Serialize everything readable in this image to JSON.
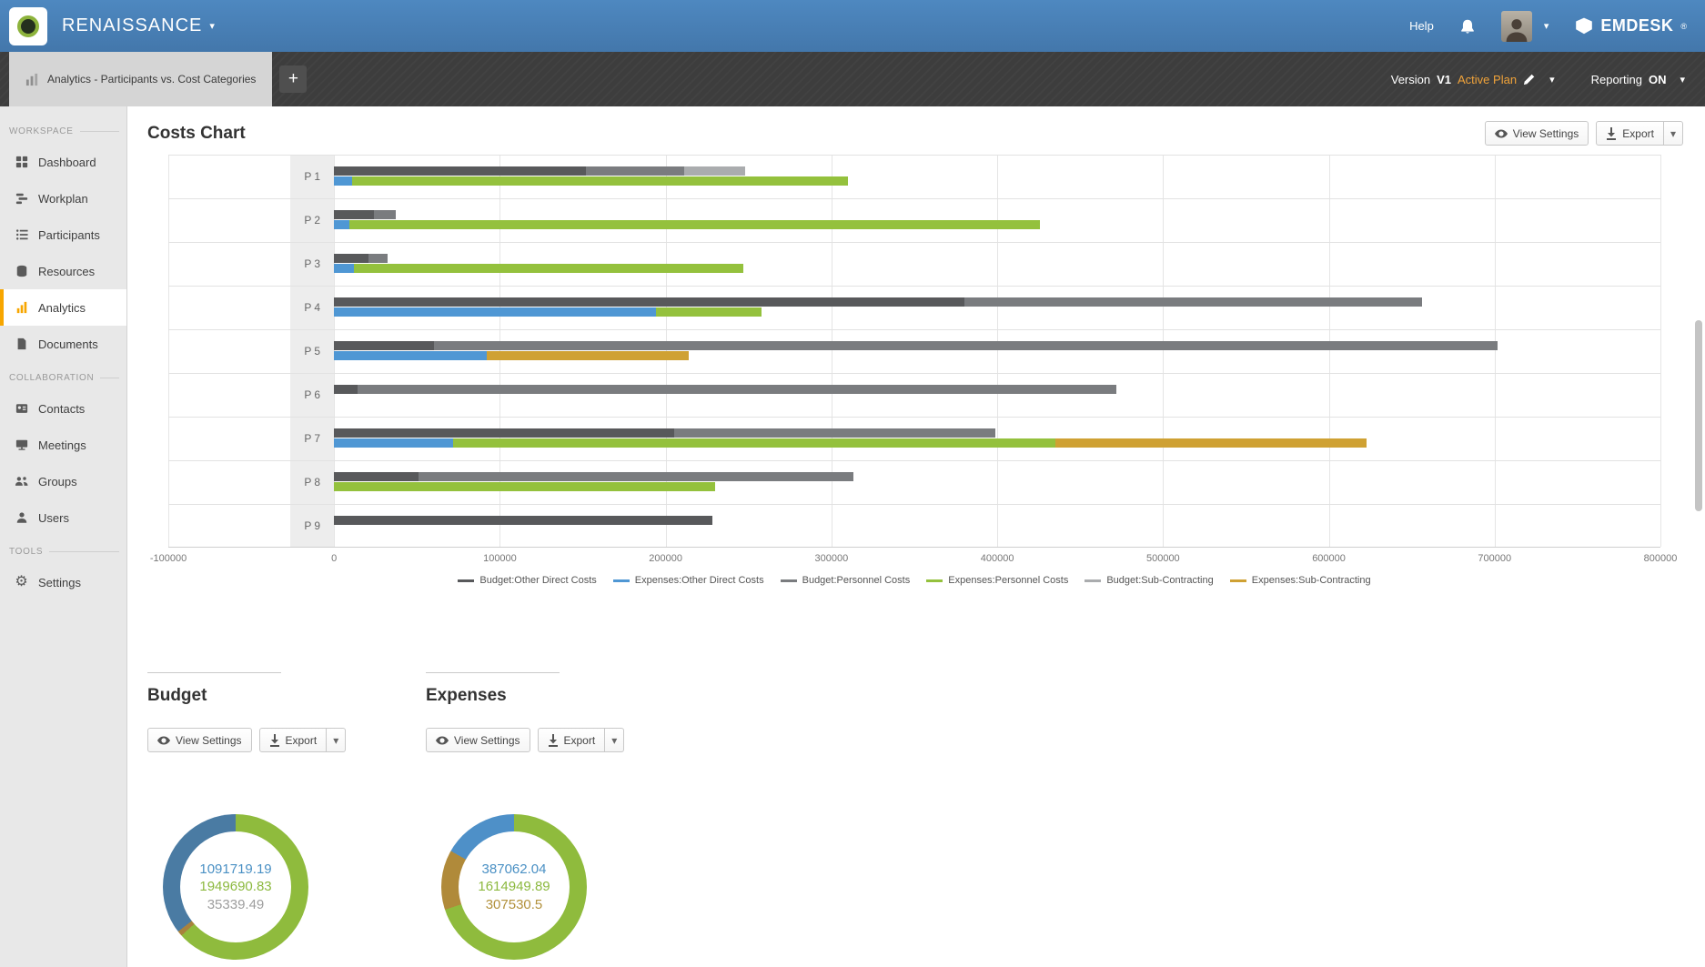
{
  "navbar": {
    "brand": "RENAISSANCE",
    "help": "Help",
    "logo_text": "EMDESK",
    "logo_reg": "®"
  },
  "tabbar": {
    "tab_label": "Analytics - Participants vs. Cost Categories",
    "new_tab": "+",
    "version_label": "Version",
    "version_value": "V1",
    "plan_label": "Active Plan",
    "reporting_label": "Reporting",
    "reporting_value": "ON"
  },
  "sidebar": {
    "sections": [
      {
        "label": "WORKSPACE",
        "items": [
          {
            "label": "Dashboard",
            "icon": "dashboard-icon"
          },
          {
            "label": "Workplan",
            "icon": "workplan-icon"
          },
          {
            "label": "Participants",
            "icon": "participants-icon"
          },
          {
            "label": "Resources",
            "icon": "resources-icon"
          },
          {
            "label": "Analytics",
            "icon": "analytics-icon",
            "active": true
          },
          {
            "label": "Documents",
            "icon": "documents-icon"
          }
        ]
      },
      {
        "label": "COLLABORATION",
        "items": [
          {
            "label": "Contacts",
            "icon": "contacts-icon"
          },
          {
            "label": "Meetings",
            "icon": "meetings-icon"
          },
          {
            "label": "Groups",
            "icon": "groups-icon"
          },
          {
            "label": "Users",
            "icon": "users-icon"
          }
        ]
      },
      {
        "label": "TOOLS",
        "items": [
          {
            "label": "Settings",
            "icon": "settings-icon"
          }
        ]
      }
    ]
  },
  "main": {
    "title": "Costs Chart",
    "view_settings_label": "View Settings",
    "export_label": "Export",
    "budget_title": "Budget",
    "expenses_title": "Expenses"
  },
  "chart_data": [
    {
      "type": "bar",
      "orientation": "horizontal",
      "title": "Costs Chart",
      "categories": [
        "P 1",
        "P 2",
        "P 3",
        "P 4",
        "P 5",
        "P 6",
        "P 7",
        "P 8",
        "P 9"
      ],
      "x_range": [
        -100000,
        800000
      ],
      "x_ticks": [
        -100000,
        0,
        100000,
        200000,
        300000,
        400000,
        500000,
        600000,
        700000,
        800000
      ],
      "grid": true,
      "legend_position": "bottom",
      "series": [
        {
          "name": "Budget:Other Direct Costs",
          "group": "budget",
          "color": "#58595b",
          "values": [
            152000,
            24000,
            21000,
            380000,
            60000,
            14000,
            205000,
            51000,
            228000
          ]
        },
        {
          "name": "Expenses:Other Direct Costs",
          "group": "expenses",
          "color": "#4f97d4",
          "values": [
            11000,
            9000,
            12000,
            194000,
            92000,
            0,
            72000,
            0,
            0
          ]
        },
        {
          "name": "Budget:Personnel Costs",
          "group": "budget",
          "color": "#7a7c7f",
          "values": [
            59000,
            13000,
            11000,
            276000,
            642000,
            458000,
            194000,
            262000,
            0
          ]
        },
        {
          "name": "Expenses:Personnel Costs",
          "group": "expenses",
          "color": "#94c13d",
          "values": [
            299000,
            417000,
            235000,
            64000,
            0,
            0,
            363000,
            230000,
            0
          ]
        },
        {
          "name": "Budget:Sub-Contracting",
          "group": "budget",
          "color": "#aaacae",
          "values": [
            37000,
            0,
            0,
            0,
            0,
            0,
            0,
            0,
            0
          ]
        },
        {
          "name": "Expenses:Sub-Contracting",
          "group": "expenses",
          "color": "#cfa133",
          "values": [
            0,
            0,
            0,
            0,
            122000,
            0,
            188000,
            0,
            0
          ]
        }
      ]
    },
    {
      "type": "pie",
      "title": "Budget",
      "segments": [
        {
          "value": 1949690.83,
          "color": "#8fbb3d"
        },
        {
          "value": 35339.49,
          "color": "#a8823d"
        },
        {
          "value": 1091719.19,
          "color": "#4a7ba3"
        }
      ],
      "center_values": [
        {
          "text": "1091719.19",
          "color": "#4a90c4"
        },
        {
          "text": "1949690.83",
          "color": "#8cb93f"
        },
        {
          "text": "35339.49",
          "color": "#9e9e9e"
        }
      ]
    },
    {
      "type": "pie",
      "title": "Expenses",
      "segments": [
        {
          "value": 1614949.89,
          "color": "#8fbb3d"
        },
        {
          "value": 307530.5,
          "color": "#b08a3a"
        },
        {
          "value": 387062.04,
          "color": "#4e90c8"
        }
      ],
      "center_values": [
        {
          "text": "387062.04",
          "color": "#4a90c4"
        },
        {
          "text": "1614949.89",
          "color": "#8cb93f"
        },
        {
          "text": "307530.5",
          "color": "#b2913c"
        }
      ]
    }
  ]
}
